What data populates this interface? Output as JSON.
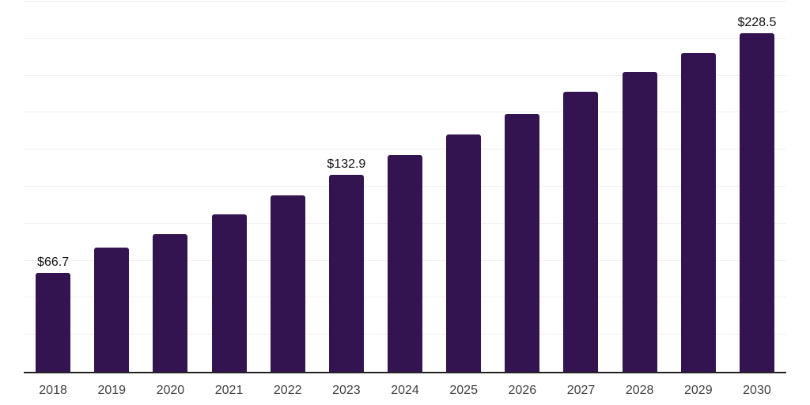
{
  "chart_data": {
    "type": "bar",
    "title": "",
    "xlabel": "",
    "ylabel": "",
    "categories": [
      "2018",
      "2019",
      "2020",
      "2021",
      "2022",
      "2023",
      "2024",
      "2025",
      "2026",
      "2027",
      "2028",
      "2029",
      "2030"
    ],
    "values": [
      66.7,
      83.7,
      92.9,
      106.3,
      119.0,
      132.9,
      146.5,
      160.3,
      174.1,
      189.1,
      202.5,
      215.4,
      228.5
    ],
    "value_labels": [
      "$66.7",
      "",
      "",
      "",
      "",
      "$132.9",
      "",
      "",
      "",
      "",
      "",
      "",
      "$228.5"
    ],
    "value_prefix": "$",
    "ylim": [
      0,
      250
    ],
    "gridline_step": 25,
    "grid": "horizontal",
    "legend": "none",
    "colors": {
      "bar": "#331450",
      "grid_line": "#f0f0f0",
      "axis_line": "#222222",
      "tick_label": "#404040",
      "value_label": "#111111",
      "background": "#ffffff"
    }
  }
}
